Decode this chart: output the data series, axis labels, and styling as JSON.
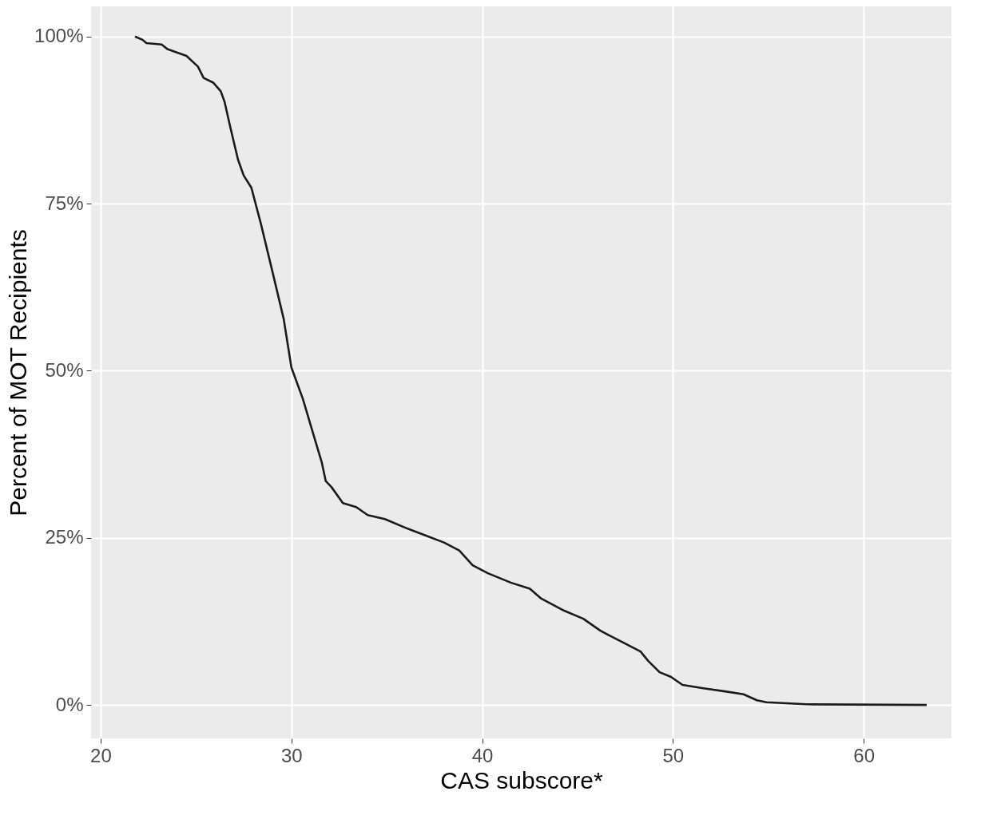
{
  "chart_data": {
    "type": "line",
    "xlabel": "CAS subscore*",
    "ylabel": "Percent of MOT Recipients",
    "x": [
      21.8,
      22.2,
      22.4,
      23.2,
      23.5,
      24.0,
      24.5,
      25.1,
      25.4,
      25.9,
      26.3,
      26.5,
      26.8,
      27.2,
      27.5,
      27.9,
      28.4,
      29.0,
      29.6,
      30.0,
      30.6,
      31.1,
      31.6,
      31.8,
      32.1,
      32.7,
      33.4,
      34.0,
      34.9,
      35.9,
      37.0,
      38.0,
      38.8,
      39.5,
      40.3,
      41.5,
      42.5,
      43.1,
      44.3,
      45.3,
      46.2,
      47.0,
      48.3,
      48.7,
      49.3,
      49.9,
      50.5,
      51.6,
      52.8,
      53.7,
      54.4,
      54.9,
      57.0,
      63.3
    ],
    "series": [
      {
        "color": "#1a1a1a",
        "values": [
          100,
          99.5,
          99.0,
          98.8,
          98.1,
          97.6,
          97.1,
          95.5,
          93.8,
          93.1,
          91.8,
          90.2,
          86.4,
          81.6,
          79.2,
          77.4,
          72.0,
          64.9,
          57.7,
          50.5,
          45.8,
          41.0,
          36.2,
          33.5,
          32.6,
          30.2,
          29.6,
          28.4,
          27.8,
          26.6,
          25.4,
          24.3,
          23.1,
          20.9,
          19.7,
          18.3,
          17.4,
          15.9,
          14.1,
          12.9,
          11.1,
          9.9,
          8.0,
          6.6,
          4.9,
          4.2,
          3.0,
          2.5,
          2.0,
          1.6,
          0.7,
          0.4,
          0.1,
          0
        ]
      }
    ],
    "xlim": [
      19.5,
      64.6
    ],
    "xticks": [
      20,
      30,
      40,
      50,
      60
    ],
    "ylim": [
      -5,
      104.5
    ],
    "yticks": [
      {
        "value": 0,
        "label": "0%"
      },
      {
        "value": 25,
        "label": "25%"
      },
      {
        "value": 50,
        "label": "50%"
      },
      {
        "value": 75,
        "label": "75%"
      },
      {
        "value": 100,
        "label": "100%"
      }
    ],
    "grid": true,
    "line_style": "solid"
  }
}
